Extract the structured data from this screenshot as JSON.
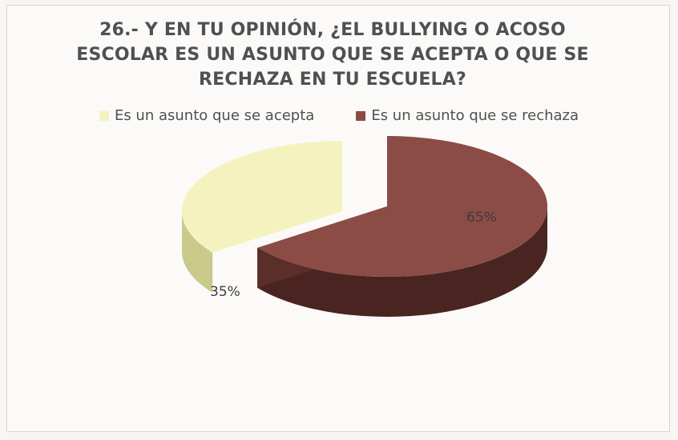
{
  "chart_data": {
    "type": "pie",
    "title": "26.- Y EN TU OPINIÓN, ¿EL BULLYING O ACOSO ESCOLAR ES UN ASUNTO QUE SE ACEPTA O QUE SE RECHAZA EN TU ESCUELA?",
    "title_lines": [
      "26.- Y EN TU OPINIÓN, ¿EL BULLYING O ACOSO",
      "ESCOLAR ES UN ASUNTO QUE SE ACEPTA O QUE SE",
      "RECHAZA EN TU ESCUELA?"
    ],
    "legend_position": "top",
    "slices": [
      {
        "label": "Es un asunto que se acepta",
        "value": 35,
        "value_label": "35%",
        "color": "#f4f3c0",
        "side_color": "#c9c98a"
      },
      {
        "label": "Es un asunto que se rechaza",
        "value": 65,
        "value_label": "65%",
        "color": "#8c4c46",
        "side_color": "#4a2420"
      }
    ]
  }
}
